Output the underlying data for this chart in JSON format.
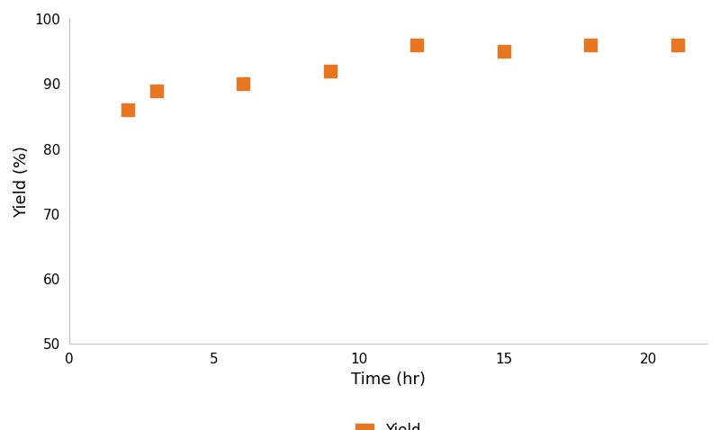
{
  "x": [
    2,
    3,
    6,
    9,
    12,
    15,
    18,
    21
  ],
  "y": [
    86,
    89,
    90,
    92,
    96,
    95,
    96,
    96
  ],
  "marker_color": "#E87722",
  "marker_size": 100,
  "marker_style": "s",
  "xlabel": "Time (hr)",
  "ylabel": "Yield (%)",
  "xlim": [
    0,
    22
  ],
  "ylim": [
    50,
    100
  ],
  "xticks": [
    0,
    5,
    10,
    15,
    20
  ],
  "yticks": [
    50,
    60,
    70,
    80,
    90,
    100
  ],
  "legend_label": "Yield",
  "legend_color": "#E87722",
  "xlabel_fontsize": 13,
  "ylabel_fontsize": 13,
  "tick_fontsize": 11,
  "legend_fontsize": 12,
  "background_color": "#ffffff",
  "spine_color": "#c0c0c0",
  "font_family": "sans-serif"
}
